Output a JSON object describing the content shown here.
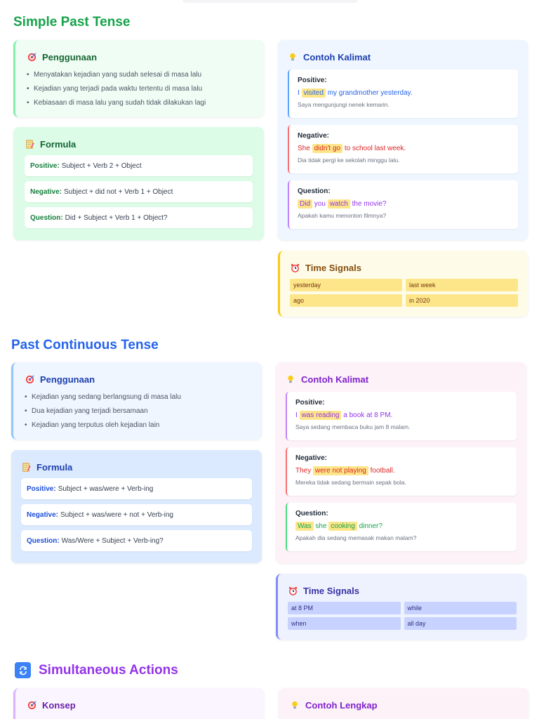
{
  "simple_past": {
    "title": "Simple Past Tense",
    "usage": {
      "heading": "Penggunaan",
      "items": [
        "Menyatakan kejadian yang sudah selesai di masa lalu",
        "Kejadian yang terjadi pada waktu tertentu di masa lalu",
        "Kebiasaan di masa lalu yang sudah tidak dilakukan lagi"
      ]
    },
    "formula": {
      "heading": "Formula",
      "rows": [
        {
          "label": "Positive:",
          "text": "Subject + Verb 2 + Object"
        },
        {
          "label": "Negative:",
          "text": "Subject + did not + Verb 1 + Object"
        },
        {
          "label": "Question:",
          "text": "Did + Subject + Verb 1 + Object?"
        }
      ]
    },
    "examples": {
      "heading": "Contoh Kalimat",
      "positive": {
        "label": "Positive:",
        "pre": "I ",
        "hl": "visited",
        "post": " my grandmother yesterday.",
        "translation": "Saya mengunjungi nenek kemarin."
      },
      "negative": {
        "label": "Negative:",
        "pre": "She ",
        "hl": "didn't go",
        "post": " to school last week.",
        "translation": "Dia tidak pergi ke sekolah minggu lalu."
      },
      "question": {
        "label": "Question:",
        "hl1": "Did",
        "mid": " you ",
        "hl2": "watch",
        "post": " the movie?",
        "translation": "Apakah kamu menonton filmnya?"
      }
    },
    "signals": {
      "heading": "Time Signals",
      "items": [
        "yesterday",
        "last week",
        "ago",
        "in 2020"
      ]
    }
  },
  "past_continuous": {
    "title": "Past Continuous Tense",
    "usage": {
      "heading": "Penggunaan",
      "items": [
        "Kejadian yang sedang berlangsung di masa lalu",
        "Dua kejadian yang terjadi bersamaan",
        "Kejadian yang terputus oleh kejadian lain"
      ]
    },
    "formula": {
      "heading": "Formula",
      "rows": [
        {
          "label": "Positive:",
          "text": "Subject + was/were + Verb-ing"
        },
        {
          "label": "Negative:",
          "text": "Subject + was/were + not + Verb-ing"
        },
        {
          "label": "Question:",
          "text": "Was/Were + Subject + Verb-ing?"
        }
      ]
    },
    "examples": {
      "heading": "Contoh Kalimat",
      "positive": {
        "label": "Positive:",
        "pre": "I ",
        "hl": "was reading",
        "post": " a book at 8 PM.",
        "translation": "Saya sedang membaca buku jam 8 malam."
      },
      "negative": {
        "label": "Negative:",
        "pre": "They ",
        "hl": "were not playing",
        "post": " football.",
        "translation": "Mereka tidak sedang bermain sepak bola."
      },
      "question": {
        "label": "Question:",
        "hl1": "Was",
        "mid": " she ",
        "hl2": "cooking",
        "post": " dinner?",
        "translation": "Apakah dia sedang memasak makan malam?"
      }
    },
    "signals": {
      "heading": "Time Signals",
      "items": [
        "at 8 PM",
        "while",
        "when",
        "all day"
      ]
    }
  },
  "simultaneous": {
    "title": "Simultaneous Actions",
    "concept_heading": "Konsep",
    "example_heading": "Contoh Lengkap"
  },
  "colors": {
    "green_title": "#16a34a",
    "blue_title": "#2563eb",
    "purple_title": "#9333ea",
    "highlight": "#fde68a"
  }
}
